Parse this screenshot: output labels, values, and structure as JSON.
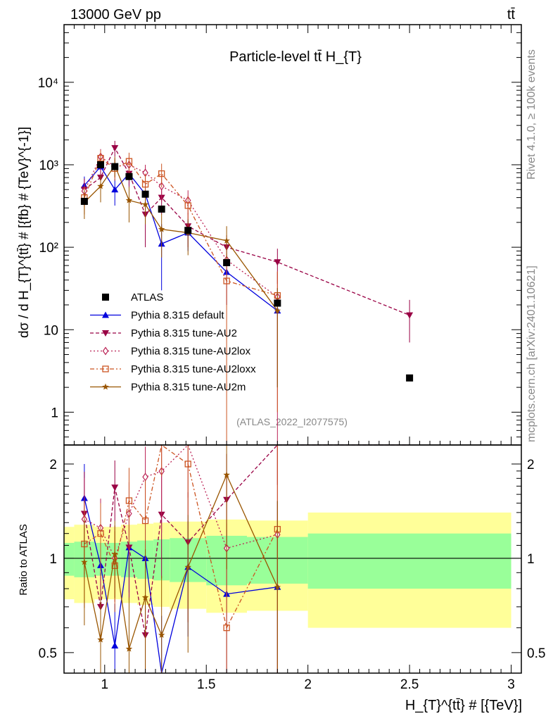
{
  "header": {
    "energy_label": "13000 GeV pp",
    "process_label": "tt̄"
  },
  "side_labels": {
    "rivet": "Rivet 4.1.0, ≥ 100k events",
    "mcplots": "mcplots.cern.ch [arXiv:2401.10621]"
  },
  "chart_data": {
    "type": "line",
    "title": "Particle-level tt̄  H_{T}",
    "xlabel": "H_{T}^{tt̄} # [{TeV}]",
    "ylabel": "dσ / d H_{T}^{tt̄} # [{fb} # {TeV}^{-1}]",
    "ratio_ylabel": "Ratio to ATLAS",
    "analysis_id": "(ATLAS_2022_I2077575)",
    "xlim": [
      0.8,
      3.05
    ],
    "ylim_log": [
      0.4,
      50000
    ],
    "ratio_ylim": [
      0.43,
      2.3
    ],
    "x_ticks": [
      1,
      1.5,
      2,
      2.5,
      3
    ],
    "x_tick_labels": [
      "1",
      "1.5",
      "2",
      "2.5",
      "3"
    ],
    "y_ticks": [
      1,
      10,
      100,
      1000,
      10000
    ],
    "y_tick_labels": [
      "1",
      "10",
      "10²",
      "10³",
      "10⁴"
    ],
    "ratio_ticks": [
      0.5,
      1,
      2
    ],
    "ratio_tick_labels": [
      "0.5",
      "1",
      "2"
    ],
    "x": [
      0.9,
      0.98,
      1.05,
      1.12,
      1.2,
      1.28,
      1.41,
      1.6,
      1.85,
      2.5
    ],
    "legend": [
      "ATLAS",
      "Pythia 8.315 default",
      "Pythia 8.315 tune-AU2",
      "Pythia 8.315 tune-AU2lox",
      "Pythia 8.315 tune-AU2loxx",
      "Pythia 8.315 tune-AU2m"
    ],
    "atlas": [
      360,
      1000,
      950,
      720,
      440,
      290,
      160,
      65,
      21,
      2.6
    ],
    "band_edges": [
      0.8,
      0.85,
      0.95,
      1.01,
      1.08,
      1.16,
      1.24,
      1.32,
      1.5,
      1.7,
      2.0,
      3.0
    ],
    "band_inner": [
      0.12,
      0.13,
      0.12,
      0.12,
      0.13,
      0.14,
      0.15,
      0.16,
      0.18,
      0.17,
      0.2
    ],
    "band_outer": [
      0.26,
      0.28,
      0.26,
      0.26,
      0.28,
      0.29,
      0.3,
      0.31,
      0.33,
      0.32,
      0.4
    ],
    "series": [
      {
        "name": "Pythia 8.315 default",
        "color": "#0000dd",
        "dash": "none",
        "marker": "triangle-up",
        "values": [
          560,
          950,
          500,
          780,
          440,
          110,
          150,
          50,
          17,
          null
        ],
        "errors": [
          160,
          250,
          180,
          220,
          160,
          80,
          60,
          30,
          15,
          null
        ]
      },
      {
        "name": "Pythia 8.315 tune-AU2",
        "color": "#990044",
        "dash": "5,3",
        "marker": "triangle-down",
        "values": [
          500,
          700,
          1600,
          780,
          250,
          400,
          180,
          100,
          66,
          15
        ],
        "errors": [
          180,
          250,
          350,
          250,
          150,
          150,
          80,
          40,
          30,
          8
        ]
      },
      {
        "name": "Pythia 8.315 tune-AU2lox",
        "color": "#bb2255",
        "dash": "2,3",
        "marker": "diamond",
        "values": [
          480,
          1250,
          950,
          1000,
          800,
          550,
          370,
          70,
          25,
          null
        ],
        "errors": [
          170,
          300,
          260,
          260,
          200,
          200,
          120,
          50,
          25,
          null
        ]
      },
      {
        "name": "Pythia 8.315 tune-AU2loxx",
        "color": "#cc5522",
        "dash": "6,3,2,3",
        "marker": "square-open",
        "values": [
          400,
          1200,
          900,
          1100,
          580,
          780,
          320,
          39,
          26,
          null
        ],
        "errors": [
          150,
          300,
          260,
          300,
          200,
          250,
          100,
          45,
          25,
          null
        ]
      },
      {
        "name": "Pythia 8.315 tune-AU2m",
        "color": "#995500",
        "dash": "none",
        "marker": "star",
        "values": [
          350,
          550,
          980,
          370,
          330,
          165,
          150,
          120,
          17,
          null
        ],
        "errors": [
          130,
          200,
          270,
          170,
          140,
          90,
          70,
          60,
          15,
          null
        ]
      }
    ]
  }
}
